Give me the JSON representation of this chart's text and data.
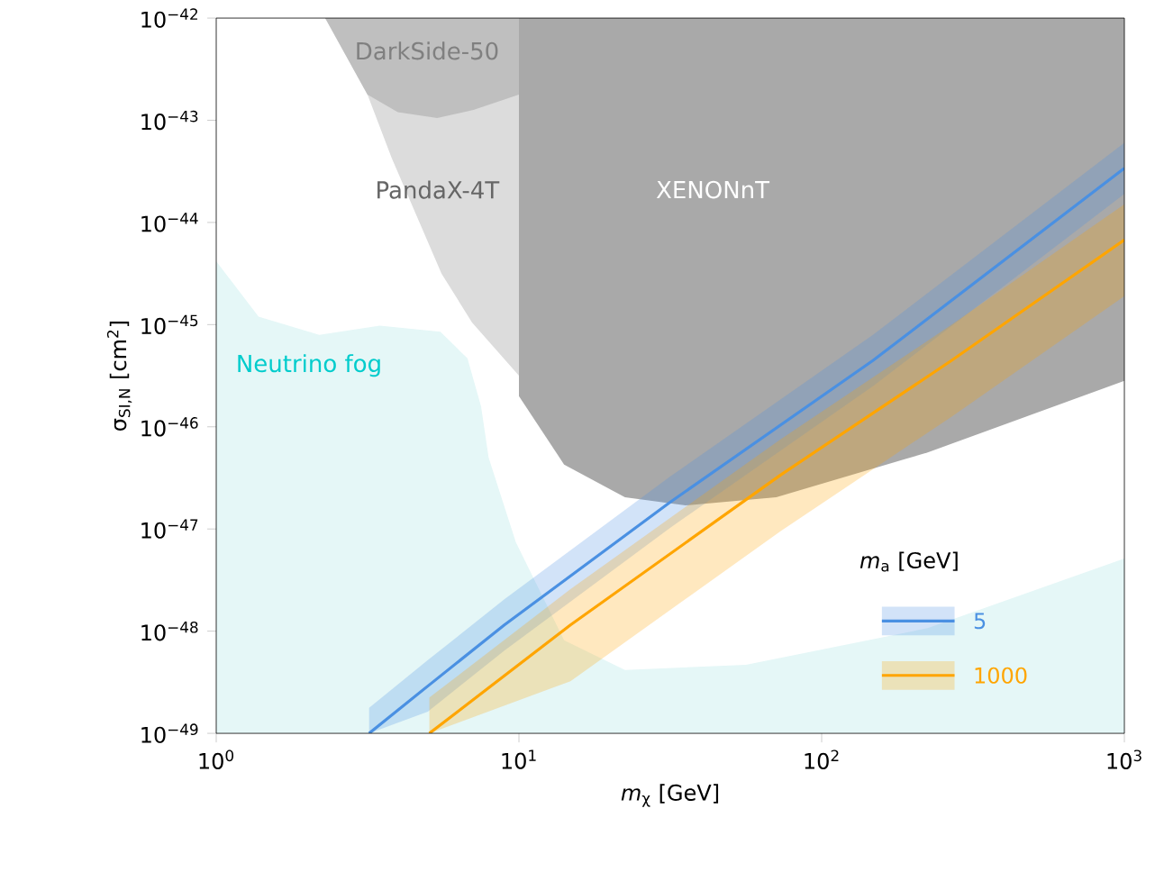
{
  "chart_data": {
    "type": "line",
    "xlabel": "*m*$_{χ}$ [GeV]",
    "ylabel": "σ$_{SI,N}$ [cm$^{2}$]",
    "legend_title": "*m*$_{a}$ [GeV]",
    "log": "xy",
    "grid": false,
    "legend": "bottom right",
    "marker": "none",
    "line_style": "solid",
    "xlim": [
      1,
      1000
    ],
    "ylim": [
      1e-49,
      1e-42
    ],
    "xticks": [
      {
        "value": 1,
        "label": "10$^{0}$"
      },
      {
        "value": 10,
        "label": "10$^{1}$"
      },
      {
        "value": 100,
        "label": "10$^{2}$"
      },
      {
        "value": 1000,
        "label": "10$^{3}$"
      }
    ],
    "yticks": [
      {
        "value": 1e-49,
        "label": "10$^{−49}$"
      },
      {
        "value": 1e-48,
        "label": "10$^{−48}$"
      },
      {
        "value": 1e-47,
        "label": "10$^{−47}$"
      },
      {
        "value": 1e-46,
        "label": "10$^{−46}$"
      },
      {
        "value": 1e-45,
        "label": "10$^{−45}$"
      },
      {
        "value": 1e-44,
        "label": "10$^{−44}$"
      },
      {
        "value": 1e-43,
        "label": "10$^{−43}$"
      },
      {
        "value": 1e-42,
        "label": "10$^{−42}$"
      }
    ],
    "series": [
      {
        "name": "Neutrino fog",
        "type": "area",
        "color": "#e5f7f7",
        "x": [
          1,
          1,
          1.38,
          2.19,
          3.47,
          5.5,
          6.76,
          7.5,
          7.94,
          9.77,
          14.1,
          22.4,
          56.2,
          224,
          1000,
          1000
        ],
        "values": [
          1e-49,
          4.17e-45,
          1.2e-45,
          7.94e-46,
          9.77e-46,
          8.51e-46,
          4.68e-46,
          1.58e-46,
          5.01e-47,
          7.41e-48,
          8.13e-49,
          4.17e-49,
          4.68e-49,
          1.07e-48,
          5.13e-48,
          1e-49
        ]
      },
      {
        "name": "PandaX-4T",
        "type": "area",
        "color": "#dcdcdc",
        "x": [
          2.29,
          3.16,
          3.8,
          5.55,
          7.0,
          10,
          10
        ],
        "values": [
          1e-42,
          1.78e-43,
          4.27e-44,
          3.16e-45,
          1.05e-45,
          3.16e-46,
          1e-42
        ]
      },
      {
        "name": "DarkSide-50",
        "type": "area",
        "color": "#bfbfbf",
        "x": [
          2.29,
          3.16,
          3.98,
          5.37,
          7.08,
          10,
          10
        ],
        "values": [
          1e-42,
          1.78e-43,
          1.2e-43,
          1.05e-43,
          1.26e-43,
          1.78e-43,
          1e-42
        ]
      },
      {
        "name": "XENONnT",
        "type": "area",
        "color": "#a9a9a9",
        "x": [
          10,
          10,
          14.1,
          22.4,
          35.5,
          70.8,
          224,
          1000,
          1000
        ],
        "values": [
          1e-42,
          2e-46,
          4.27e-47,
          2.04e-47,
          1.7e-47,
          2.04e-47,
          5.62e-47,
          2.82e-46,
          1e-42
        ]
      },
      {
        "name": "5",
        "color": "#4a90e2",
        "x": [
          3.2,
          5.0,
          8.95,
          31.5,
          148,
          1000
        ],
        "values": [
          1e-49,
          2.9e-49,
          1.15e-48,
          1.82e-47,
          4.47e-46,
          3.39e-44
        ],
        "lower": [
          1e-49,
          1.63e-49,
          6.46e-49,
          1.02e-47,
          2.51e-46,
          1.9e-44
        ],
        "upper": [
          1.78e-49,
          5.2e-49,
          2.05e-48,
          3.24e-47,
          7.96e-46,
          6.03e-44
        ]
      },
      {
        "name": "1000",
        "color": "#ffa500",
        "x": [
          5.06,
          14.8,
          73.3,
          269,
          1000
        ],
        "values": [
          1e-49,
          1.15e-48,
          3.39e-47,
          4.47e-46,
          6.76e-45
        ],
        "lower": [
          1e-49,
          3.24e-49,
          9.55e-48,
          1.26e-46,
          1.9e-45
        ],
        "upper": [
          2.24e-49,
          2.58e-48,
          7.59e-47,
          1e-45,
          1.51e-44
        ]
      }
    ]
  }
}
